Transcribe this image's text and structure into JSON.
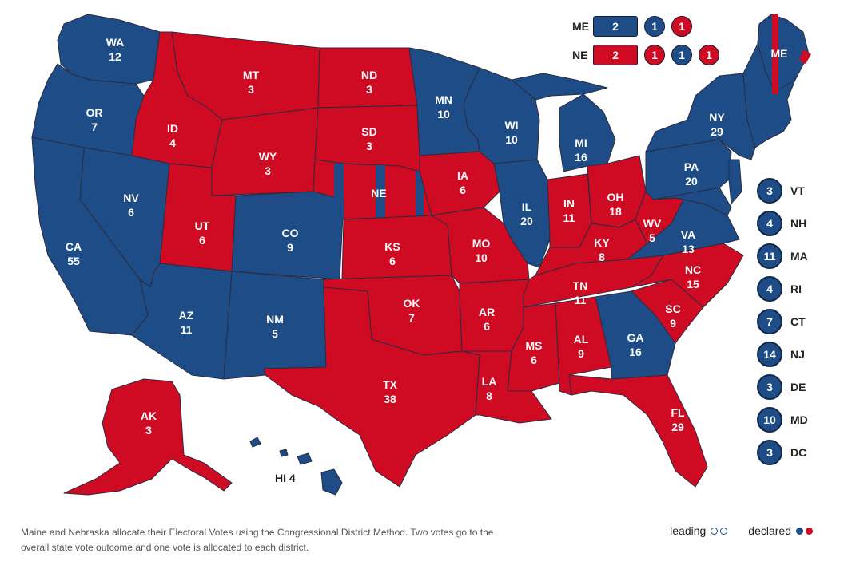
{
  "colors": {
    "dem": "#1d4c86",
    "rep": "#cf0b24",
    "border": "#2b2b40"
  },
  "states": [
    {
      "abbr": "WA",
      "votes": "12",
      "party": "dem"
    },
    {
      "abbr": "OR",
      "votes": "7",
      "party": "dem"
    },
    {
      "abbr": "CA",
      "votes": "55",
      "party": "dem"
    },
    {
      "abbr": "NV",
      "votes": "6",
      "party": "dem"
    },
    {
      "abbr": "ID",
      "votes": "4",
      "party": "rep"
    },
    {
      "abbr": "MT",
      "votes": "3",
      "party": "rep"
    },
    {
      "abbr": "WY",
      "votes": "3",
      "party": "rep"
    },
    {
      "abbr": "UT",
      "votes": "6",
      "party": "rep"
    },
    {
      "abbr": "AZ",
      "votes": "11",
      "party": "dem"
    },
    {
      "abbr": "CO",
      "votes": "9",
      "party": "dem"
    },
    {
      "abbr": "NM",
      "votes": "5",
      "party": "dem"
    },
    {
      "abbr": "ND",
      "votes": "3",
      "party": "rep"
    },
    {
      "abbr": "SD",
      "votes": "3",
      "party": "rep"
    },
    {
      "abbr": "NE",
      "votes": "",
      "party": "rep"
    },
    {
      "abbr": "KS",
      "votes": "6",
      "party": "rep"
    },
    {
      "abbr": "OK",
      "votes": "7",
      "party": "rep"
    },
    {
      "abbr": "TX",
      "votes": "38",
      "party": "rep"
    },
    {
      "abbr": "MN",
      "votes": "10",
      "party": "dem"
    },
    {
      "abbr": "IA",
      "votes": "6",
      "party": "rep"
    },
    {
      "abbr": "MO",
      "votes": "10",
      "party": "rep"
    },
    {
      "abbr": "AR",
      "votes": "6",
      "party": "rep"
    },
    {
      "abbr": "LA",
      "votes": "8",
      "party": "rep"
    },
    {
      "abbr": "WI",
      "votes": "10",
      "party": "dem"
    },
    {
      "abbr": "IL",
      "votes": "20",
      "party": "dem"
    },
    {
      "abbr": "MI",
      "votes": "16",
      "party": "dem"
    },
    {
      "abbr": "IN",
      "votes": "11",
      "party": "rep"
    },
    {
      "abbr": "OH",
      "votes": "18",
      "party": "rep"
    },
    {
      "abbr": "KY",
      "votes": "8",
      "party": "rep"
    },
    {
      "abbr": "TN",
      "votes": "11",
      "party": "rep"
    },
    {
      "abbr": "MS",
      "votes": "6",
      "party": "rep"
    },
    {
      "abbr": "AL",
      "votes": "9",
      "party": "rep"
    },
    {
      "abbr": "GA",
      "votes": "16",
      "party": "dem"
    },
    {
      "abbr": "FL",
      "votes": "29",
      "party": "rep"
    },
    {
      "abbr": "SC",
      "votes": "9",
      "party": "rep"
    },
    {
      "abbr": "NC",
      "votes": "15",
      "party": "rep"
    },
    {
      "abbr": "VA",
      "votes": "13",
      "party": "dem"
    },
    {
      "abbr": "WV",
      "votes": "5",
      "party": "rep"
    },
    {
      "abbr": "PA",
      "votes": "20",
      "party": "dem"
    },
    {
      "abbr": "NY",
      "votes": "29",
      "party": "dem"
    },
    {
      "abbr": "ME",
      "votes": "",
      "party": "dem"
    },
    {
      "abbr": "AK",
      "votes": "3",
      "party": "rep"
    },
    {
      "abbr": "HI",
      "votes": "4",
      "party": "dem"
    }
  ],
  "hawaii_label": "HI 4",
  "district_rows": [
    {
      "state": "ME",
      "chips": [
        {
          "value": "2",
          "party": "dem",
          "shape": "rect"
        },
        {
          "value": "1",
          "party": "dem",
          "shape": "circle"
        },
        {
          "value": "1",
          "party": "rep",
          "shape": "circle"
        }
      ]
    },
    {
      "state": "NE",
      "chips": [
        {
          "value": "2",
          "party": "rep",
          "shape": "rect"
        },
        {
          "value": "1",
          "party": "rep",
          "shape": "circle"
        },
        {
          "value": "1",
          "party": "dem",
          "shape": "circle"
        },
        {
          "value": "1",
          "party": "rep",
          "shape": "circle"
        }
      ]
    }
  ],
  "small_states": [
    {
      "votes": "3",
      "abbr": "VT",
      "party": "dem"
    },
    {
      "votes": "4",
      "abbr": "NH",
      "party": "dem"
    },
    {
      "votes": "11",
      "abbr": "MA",
      "party": "dem"
    },
    {
      "votes": "4",
      "abbr": "RI",
      "party": "dem"
    },
    {
      "votes": "7",
      "abbr": "CT",
      "party": "dem"
    },
    {
      "votes": "14",
      "abbr": "NJ",
      "party": "dem"
    },
    {
      "votes": "3",
      "abbr": "DE",
      "party": "dem"
    },
    {
      "votes": "10",
      "abbr": "MD",
      "party": "dem"
    },
    {
      "votes": "3",
      "abbr": "DC",
      "party": "dem"
    }
  ],
  "footnote": "Maine and Nebraska allocate their Electoral Votes using the Congressional District Method. Two votes go to the overall state vote outcome and one vote is allocated to each district.",
  "legend": {
    "leading": "leading",
    "declared": "declared"
  }
}
